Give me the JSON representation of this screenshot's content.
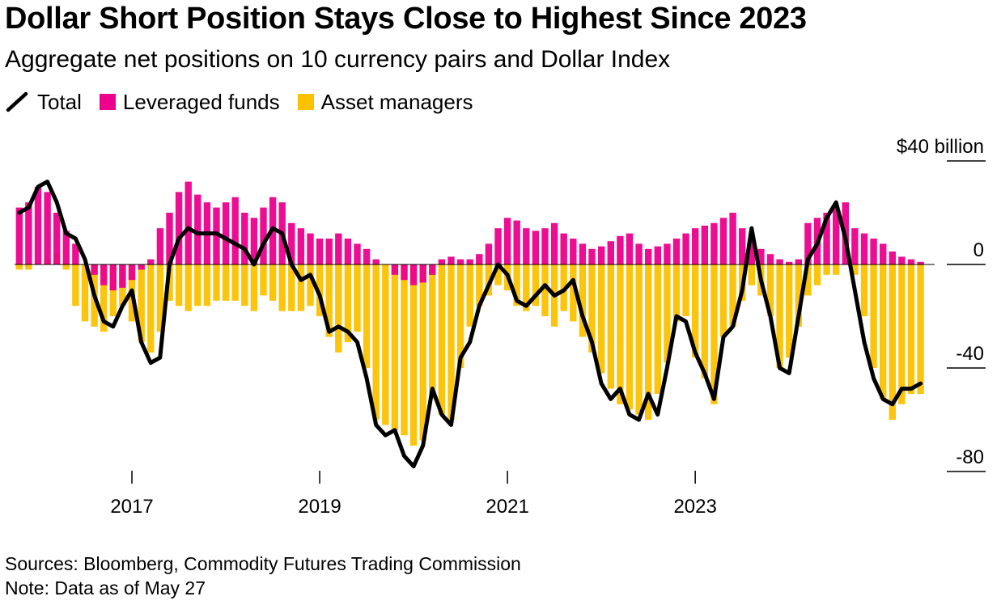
{
  "title": "Dollar Short Position Stays Close to Highest Since 2023",
  "subtitle": "Aggregate net positions on 10 currency pairs and Dollar Index",
  "legend": [
    {
      "label": "Total",
      "color": "#000000",
      "shape": "line"
    },
    {
      "label": "Leveraged funds",
      "color": "#ec008c",
      "shape": "square"
    },
    {
      "label": "Asset managers",
      "color": "#fcc200",
      "shape": "square"
    }
  ],
  "footer": {
    "source": "Sources: Bloomberg, Commodity Futures Trading Commission",
    "note": "Note: Data as of May 27"
  },
  "chart_data": {
    "type": "area",
    "title": "Dollar Short Position Stays Close to Highest Since 2023",
    "subtitle": "Aggregate net positions on 10 currency pairs and Dollar Index",
    "y_unit": "$40 billion",
    "y_ticks": [
      {
        "value": 40,
        "label": "$40 billion"
      },
      {
        "value": 0,
        "label": "0"
      },
      {
        "value": -40,
        "label": "-40"
      },
      {
        "value": -80,
        "label": "-80"
      }
    ],
    "ylim": [
      -85,
      45
    ],
    "xlim": [
      2015.75,
      2025.55
    ],
    "x_ticks": [
      {
        "value": 2017,
        "label": "2017"
      },
      {
        "value": 2019,
        "label": "2019"
      },
      {
        "value": 2021,
        "label": "2021"
      },
      {
        "value": 2023,
        "label": "2023"
      }
    ],
    "grid": false,
    "legend_position": "top-left",
    "series": [
      {
        "name": "Leveraged funds",
        "color": "#ec008c",
        "kind": "bars",
        "x": [
          2015.8,
          2015.9,
          2016.0,
          2016.1,
          2016.2,
          2016.3,
          2016.4,
          2016.5,
          2016.6,
          2016.7,
          2016.8,
          2016.9,
          2017.0,
          2017.1,
          2017.2,
          2017.3,
          2017.4,
          2017.5,
          2017.6,
          2017.7,
          2017.8,
          2017.9,
          2018.0,
          2018.1,
          2018.2,
          2018.3,
          2018.4,
          2018.5,
          2018.6,
          2018.7,
          2018.8,
          2018.9,
          2019.0,
          2019.1,
          2019.2,
          2019.3,
          2019.4,
          2019.5,
          2019.6,
          2019.7,
          2019.8,
          2019.9,
          2020.0,
          2020.1,
          2020.2,
          2020.3,
          2020.4,
          2020.5,
          2020.6,
          2020.7,
          2020.8,
          2020.9,
          2021.0,
          2021.1,
          2021.2,
          2021.3,
          2021.4,
          2021.5,
          2021.6,
          2021.7,
          2021.8,
          2021.9,
          2022.0,
          2022.1,
          2022.2,
          2022.3,
          2022.4,
          2022.5,
          2022.6,
          2022.7,
          2022.8,
          2022.9,
          2023.0,
          2023.1,
          2023.2,
          2023.3,
          2023.4,
          2023.5,
          2023.6,
          2023.7,
          2023.8,
          2023.9,
          2024.0,
          2024.1,
          2024.2,
          2024.3,
          2024.4,
          2024.5,
          2024.6,
          2024.7,
          2024.8,
          2024.9,
          2025.0,
          2025.1,
          2025.2,
          2025.3,
          2025.4
        ],
        "values": [
          22,
          24,
          30,
          28,
          20,
          13,
          8,
          0,
          -4,
          -8,
          -10,
          -9,
          -6,
          -2,
          2,
          14,
          20,
          28,
          32,
          27,
          24,
          22,
          24,
          26,
          20,
          18,
          22,
          26,
          24,
          16,
          14,
          12,
          10,
          10,
          12,
          10,
          8,
          6,
          2,
          0,
          -4,
          -6,
          -8,
          -7,
          -4,
          2,
          3,
          2,
          2,
          4,
          8,
          14,
          18,
          17,
          14,
          13,
          14,
          16,
          12,
          10,
          8,
          6,
          7,
          9,
          11,
          12,
          8,
          6,
          7,
          8,
          10,
          12,
          14,
          15,
          16,
          18,
          20,
          14,
          10,
          6,
          4,
          2,
          1,
          2,
          16,
          18,
          20,
          22,
          24,
          14,
          12,
          10,
          8,
          5,
          3,
          2,
          1
        ]
      },
      {
        "name": "Asset managers",
        "color": "#fcc200",
        "kind": "bars",
        "x": [
          2015.8,
          2015.9,
          2016.0,
          2016.1,
          2016.2,
          2016.3,
          2016.4,
          2016.5,
          2016.6,
          2016.7,
          2016.8,
          2016.9,
          2017.0,
          2017.1,
          2017.2,
          2017.3,
          2017.4,
          2017.5,
          2017.6,
          2017.7,
          2017.8,
          2017.9,
          2018.0,
          2018.1,
          2018.2,
          2018.3,
          2018.4,
          2018.5,
          2018.6,
          2018.7,
          2018.8,
          2018.9,
          2019.0,
          2019.1,
          2019.2,
          2019.3,
          2019.4,
          2019.5,
          2019.6,
          2019.7,
          2019.8,
          2019.9,
          2020.0,
          2020.1,
          2020.2,
          2020.3,
          2020.4,
          2020.5,
          2020.6,
          2020.7,
          2020.8,
          2020.9,
          2021.0,
          2021.1,
          2021.2,
          2021.3,
          2021.4,
          2021.5,
          2021.6,
          2021.7,
          2021.8,
          2021.9,
          2022.0,
          2022.1,
          2022.2,
          2022.3,
          2022.4,
          2022.5,
          2022.6,
          2022.7,
          2022.8,
          2022.9,
          2023.0,
          2023.1,
          2023.2,
          2023.3,
          2023.4,
          2023.5,
          2023.6,
          2023.7,
          2023.8,
          2023.9,
          2024.0,
          2024.1,
          2024.2,
          2024.3,
          2024.4,
          2024.5,
          2024.6,
          2024.7,
          2024.8,
          2024.9,
          2025.0,
          2025.1,
          2025.2,
          2025.3,
          2025.4
        ],
        "values": [
          -2,
          -2,
          0,
          2,
          4,
          -2,
          -16,
          -22,
          -24,
          -26,
          -20,
          -16,
          -22,
          -30,
          -34,
          -26,
          -14,
          -16,
          -18,
          -16,
          -16,
          -14,
          -14,
          -14,
          -16,
          -18,
          -12,
          -14,
          -18,
          -18,
          -18,
          -16,
          -20,
          -28,
          -34,
          -30,
          -26,
          -40,
          -60,
          -62,
          -64,
          -66,
          -70,
          -68,
          -52,
          -58,
          -60,
          -40,
          -24,
          -16,
          -12,
          -8,
          -10,
          -16,
          -18,
          -16,
          -20,
          -24,
          -18,
          -22,
          -28,
          -34,
          -42,
          -48,
          -54,
          -56,
          -58,
          -60,
          -50,
          -38,
          -22,
          -20,
          -36,
          -44,
          -54,
          -28,
          -24,
          -14,
          -8,
          -12,
          -20,
          -40,
          -36,
          -24,
          -12,
          -8,
          -4,
          -4,
          0,
          -4,
          -20,
          -40,
          -52,
          -60,
          -54,
          -50,
          -50
        ]
      },
      {
        "name": "Total",
        "color": "#000000",
        "kind": "line",
        "x": [
          2015.8,
          2015.9,
          2016.0,
          2016.1,
          2016.2,
          2016.3,
          2016.4,
          2016.5,
          2016.6,
          2016.7,
          2016.8,
          2016.9,
          2017.0,
          2017.1,
          2017.2,
          2017.3,
          2017.4,
          2017.5,
          2017.6,
          2017.7,
          2017.8,
          2017.9,
          2018.0,
          2018.1,
          2018.2,
          2018.3,
          2018.4,
          2018.5,
          2018.6,
          2018.7,
          2018.8,
          2018.9,
          2019.0,
          2019.1,
          2019.2,
          2019.3,
          2019.4,
          2019.5,
          2019.6,
          2019.7,
          2019.8,
          2019.9,
          2020.0,
          2020.1,
          2020.2,
          2020.3,
          2020.4,
          2020.5,
          2020.6,
          2020.7,
          2020.8,
          2020.9,
          2021.0,
          2021.1,
          2021.2,
          2021.3,
          2021.4,
          2021.5,
          2021.6,
          2021.7,
          2021.8,
          2021.9,
          2022.0,
          2022.1,
          2022.2,
          2022.3,
          2022.4,
          2022.5,
          2022.6,
          2022.7,
          2022.8,
          2022.9,
          2023.0,
          2023.1,
          2023.2,
          2023.3,
          2023.4,
          2023.5,
          2023.6,
          2023.7,
          2023.8,
          2023.9,
          2024.0,
          2024.1,
          2024.2,
          2024.3,
          2024.4,
          2024.5,
          2024.6,
          2024.7,
          2024.8,
          2024.9,
          2025.0,
          2025.1,
          2025.2,
          2025.3,
          2025.4
        ],
        "values": [
          20,
          22,
          30,
          32,
          24,
          12,
          10,
          2,
          -12,
          -22,
          -24,
          -16,
          -10,
          -30,
          -38,
          -36,
          0,
          10,
          14,
          12,
          12,
          12,
          10,
          8,
          6,
          0,
          8,
          14,
          12,
          0,
          -6,
          -4,
          -12,
          -26,
          -24,
          -26,
          -30,
          -44,
          -62,
          -66,
          -64,
          -74,
          -78,
          -70,
          -48,
          -58,
          -62,
          -36,
          -30,
          -16,
          -8,
          0,
          -4,
          -14,
          -16,
          -12,
          -8,
          -12,
          -10,
          -6,
          -20,
          -30,
          -46,
          -52,
          -48,
          -58,
          -60,
          -50,
          -58,
          -40,
          -20,
          -22,
          -34,
          -42,
          -52,
          -28,
          -24,
          -10,
          14,
          -6,
          -20,
          -40,
          -42,
          -20,
          2,
          8,
          18,
          24,
          10,
          -10,
          -30,
          -44,
          -52,
          -54,
          -48,
          -48,
          -46
        ]
      }
    ]
  }
}
